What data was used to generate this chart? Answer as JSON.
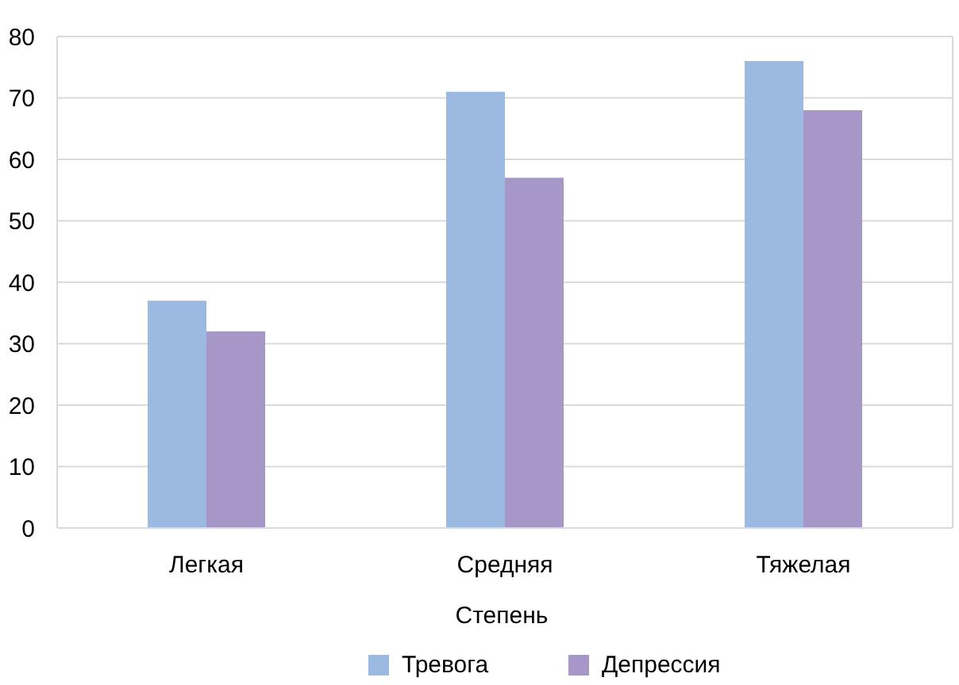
{
  "chart_data": {
    "type": "bar",
    "xlabel": "Степень",
    "categories": [
      "Легкая",
      "Средняя",
      "Тяжелая"
    ],
    "series": [
      {
        "name": "Тревога",
        "color": "#9bb9e1",
        "values": [
          37,
          71,
          76
        ]
      },
      {
        "name": "Депрессия",
        "color": "#a797c9",
        "values": [
          32,
          57,
          68
        ]
      }
    ],
    "ylim": [
      0,
      80
    ],
    "yticks": [
      0,
      10,
      20,
      30,
      40,
      50,
      60,
      70,
      80
    ],
    "grid": "y",
    "legend": "bottom"
  }
}
